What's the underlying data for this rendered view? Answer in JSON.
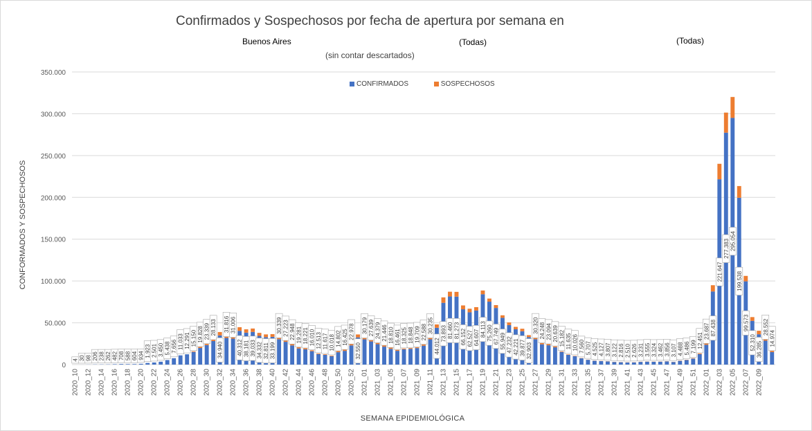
{
  "header": {
    "title": "Confirmados y Sospechosos por fecha de apertura por semana en",
    "subtitle_province": "Buenos Aires",
    "subtitle_filter_1": "(Todas)",
    "subtitle_filter_2": "(Todas)",
    "subtitle_note": "(sin contar descartados)"
  },
  "colors": {
    "confirmados": "#4472c4",
    "sospechosos": "#ed7d31",
    "grid": "#d9d9d9",
    "label_box_border": "#a6a6a6"
  },
  "chart_data": {
    "type": "bar",
    "stacked": true,
    "ylabel": "CONFORMADOS  Y SOSPECHOSOS",
    "xlabel": "SEMANA  EPIDEMIOLÓGICA",
    "ylim": [
      0,
      350000
    ],
    "yticks": [
      "0",
      "50.000",
      "100.000",
      "150.000",
      "200.000",
      "250.000",
      "300.000",
      "350.000"
    ],
    "grid": "horizontal",
    "legend_position": "top",
    "x_tick_labels": [
      "2020_10",
      "2020_12",
      "2020_14",
      "2020_16",
      "2020_18",
      "2020_20",
      "2020_22",
      "2020_24",
      "2020_26",
      "2020_28",
      "2020_30",
      "2020_32",
      "2020_34",
      "2020_36",
      "2020_38",
      "2020_40",
      "2020_42",
      "2020_44",
      "2020_46",
      "2020_48",
      "2020_50",
      "2020_52",
      "2021_01",
      "2021_03",
      "2021_05",
      "2021_07",
      "2021_09",
      "2021_11",
      "2021_13",
      "2021_15",
      "2021_17",
      "2021_19",
      "2021_21",
      "2021_23",
      "2021_25",
      "2021_27",
      "2021_29",
      "2021_31",
      "2021_33",
      "2021_35",
      "2021_37",
      "2021_39",
      "2021_41",
      "2021_43",
      "2021_45",
      "2021_47",
      "2021_49",
      "2021_51",
      "2022_01",
      "2022_03",
      "2022_05",
      "2022_07",
      "2022_09"
    ],
    "series": [
      {
        "name": "CONFIRMADOS",
        "values": [
          4,
          30,
          98,
          206,
          238,
          262,
          482,
          708,
          588,
          604,
          934,
          1923,
          2501,
          3450,
          5438,
          7656,
          11033,
          12291,
          15150,
          19828,
          23339,
          28133,
          34940,
          31816,
          31006,
          40312,
          38181,
          39033,
          34332,
          32811,
          33199,
          30339,
          27223,
          22948,
          19281,
          18221,
          16010,
          12513,
          11617,
          10018,
          14802,
          16425,
          22978,
          32550,
          30179,
          27639,
          24379,
          21446,
          18810,
          16461,
          18325,
          18848,
          19709,
          22588,
          30235,
          44012,
          73893,
          81460,
          81273,
          66152,
          62527,
          64607,
          84113,
          75260,
          67749,
          55949,
          47232,
          42221,
          39877,
          32903,
          30320,
          24248,
          23094,
          20639,
          15182,
          11635,
          10026,
          7560,
          5707,
          4525,
          4127,
          3807,
          3122,
          2816,
          2510,
          2626,
          3231,
          3555,
          3324,
          3462,
          3856,
          3107,
          4488,
          5486,
          7199,
          12451,
          23687,
          87438,
          221647,
          277383,
          295054,
          199538,
          99573,
          52310,
          36285,
          28552,
          14974
        ],
        "data_labels": [
          "4",
          "30",
          "98",
          "206",
          "238",
          "262",
          "482",
          "708",
          "588",
          "604",
          "934",
          "1.923",
          "2.501",
          "3.450",
          "5.438",
          "7.656",
          "11.033",
          "12.291",
          "15.150",
          "19.828",
          "23.339",
          "28.133",
          "34.940",
          "31.816",
          "31.006",
          "40.312",
          "38.181",
          "39.033",
          "34.332",
          "32.811",
          "33.199",
          "30.339",
          "27.223",
          "22.948",
          "19.281",
          "18.221",
          "16.010",
          "12.513",
          "11.617",
          "10.018",
          "14.802",
          "16.425",
          "22.978",
          "32.550",
          "30.179",
          "27.639",
          "24.379",
          "21.446",
          "18.810",
          "16.461",
          "18.325",
          "18.848",
          "19.709",
          "22.588",
          "30.235",
          "44.012",
          "73.893",
          "81.460",
          "81.273",
          "66.152",
          "62.527",
          "64.607",
          "84.113",
          "75.260",
          "67.749",
          "55.949",
          "47.232",
          "42.221",
          "39.877",
          "32.903",
          "30.320",
          "24.248",
          "23.094",
          "20.639",
          "15.182",
          "11.635",
          "10.026",
          "7.560",
          "5.707",
          "4.525",
          "4.127",
          "3.807",
          "3.122",
          "2.816",
          "2.510",
          "2.626",
          "3.231",
          "3.555",
          "3.324",
          "3.462",
          "3.856",
          "3.107",
          "4.488",
          "5.486",
          "7.199",
          "12.451",
          "23.687",
          "87.438",
          "221.647",
          "277.383",
          "295.054",
          "199.538",
          "99.573",
          "52.310",
          "36.285",
          "28.552",
          "14.974"
        ]
      },
      {
        "name": "SOSPECHOSOS",
        "values": [
          0,
          0,
          0,
          0,
          0,
          0,
          0,
          0,
          0,
          0,
          0,
          0,
          0,
          0,
          0,
          0,
          0,
          0,
          800,
          1500,
          2200,
          3000,
          4000,
          3500,
          3200,
          4400,
          4000,
          4100,
          3600,
          3300,
          3200,
          3000,
          2600,
          2200,
          1700,
          1400,
          1100,
          800,
          700,
          700,
          1300,
          1600,
          2300,
          3500,
          3200,
          2900,
          2600,
          2200,
          1600,
          1100,
          900,
          900,
          1000,
          1500,
          2600,
          4000,
          6500,
          5700,
          5700,
          4600,
          4300,
          4100,
          4500,
          3700,
          3400,
          3000,
          3200,
          2900,
          3000,
          2300,
          2100,
          1700,
          1500,
          1200,
          700,
          500,
          400,
          300,
          200,
          200,
          200,
          200,
          200,
          200,
          200,
          200,
          200,
          200,
          200,
          200,
          200,
          200,
          300,
          300,
          500,
          900,
          1600,
          7500,
          18500,
          24000,
          25000,
          14000,
          6500,
          4500,
          4200,
          3800,
          9000
        ]
      }
    ]
  },
  "legend": {
    "confirmados": "CONFIRMADOS",
    "sospechosos": "SOSPECHOSOS"
  }
}
